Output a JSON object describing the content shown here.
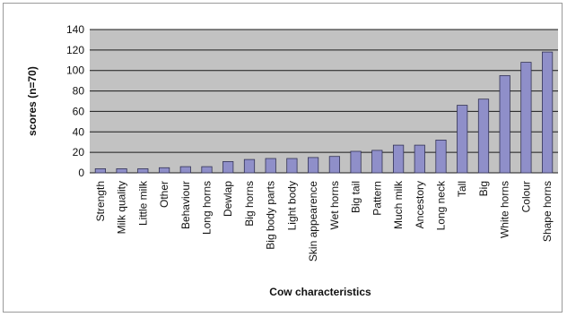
{
  "chart_data": {
    "type": "bar",
    "title": "",
    "xlabel": "Cow characteristics",
    "ylabel": "scores (n=70)",
    "ylim": [
      0,
      140
    ],
    "yticks": [
      0,
      20,
      40,
      60,
      80,
      100,
      120,
      140
    ],
    "grid": true,
    "legend": "none",
    "categories": [
      "Strength",
      "Milk quality",
      "Little milk",
      "Other",
      "Behaviour",
      "Long horns",
      "Dewlap",
      "Big horns",
      "Big body parts",
      "Light body",
      "Skin appearence",
      "Wet horns",
      "Big tail",
      "Pattern",
      "Much milk",
      "Ancestory",
      "Long neck",
      "Tall",
      "Big",
      "White horns",
      "Colour",
      "Shape horns"
    ],
    "values": [
      4,
      4,
      4,
      5,
      6,
      6,
      11,
      13,
      14,
      14,
      15,
      16,
      21,
      22,
      27,
      27,
      32,
      66,
      72,
      95,
      108,
      118
    ],
    "colors": {
      "plot_background": "#c2c2c2",
      "bar_fill": "#8f8fc9",
      "bar_stroke": "#333355",
      "gridline": "#1a1a1a"
    }
  }
}
